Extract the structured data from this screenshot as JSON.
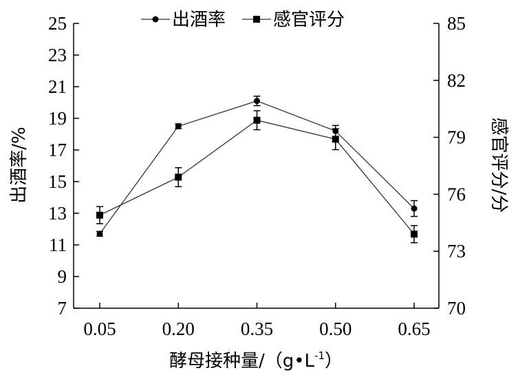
{
  "chart_data": {
    "type": "line",
    "categories": [
      "0.05",
      "0.20",
      "0.35",
      "0.50",
      "0.65"
    ],
    "xlabel": "酵母接种量/（g•L",
    "xlabel_sup": "-1",
    "xlabel_end": "）",
    "ylabel_left": "出酒率/%",
    "ylabel_right": "感官评分/分",
    "ylim_left": [
      7,
      25
    ],
    "yticks_left": [
      "7",
      "9",
      "11",
      "13",
      "15",
      "17",
      "19",
      "21",
      "23",
      "25"
    ],
    "ylim_right": [
      70,
      85
    ],
    "yticks_right": [
      "70",
      "73",
      "76",
      "79",
      "82",
      "85"
    ],
    "legend_position": "top-center",
    "series": [
      {
        "name": "出酒率",
        "axis": "left",
        "marker": "circle",
        "values": [
          11.7,
          18.5,
          20.1,
          18.2,
          13.3
        ],
        "errors": [
          0.15,
          0.15,
          0.3,
          0.35,
          0.5
        ]
      },
      {
        "name": "感官评分",
        "axis": "right",
        "marker": "square",
        "values": [
          74.9,
          76.9,
          79.9,
          78.9,
          73.9
        ],
        "errors": [
          0.45,
          0.5,
          0.5,
          0.55,
          0.45
        ]
      }
    ]
  }
}
